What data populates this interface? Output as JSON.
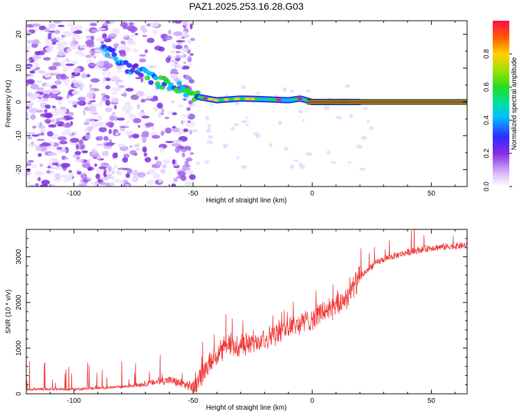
{
  "figure": {
    "title": "PAZ1.2025.253.16.28.G03"
  },
  "chart_data": [
    {
      "type": "heatmap",
      "id": "spectrogram",
      "xlabel": "Height of straight line (km)",
      "ylabel": "Frequency (Hz)",
      "xlim": [
        -120,
        65
      ],
      "ylim": [
        -25,
        24
      ],
      "xticks": [
        -100,
        -50,
        0,
        50
      ],
      "yticks": [
        -20,
        -10,
        0,
        10,
        20
      ],
      "colorbar": {
        "label": "Normalized spectral amplitude",
        "range": [
          0,
          1
        ],
        "ticks": [
          0.0,
          0.2,
          0.4,
          0.6,
          0.8
        ]
      },
      "ridge_track": [
        {
          "x": -85,
          "y": 15
        },
        {
          "x": -80,
          "y": 11
        },
        {
          "x": -72,
          "y": 9
        },
        {
          "x": -65,
          "y": 6
        },
        {
          "x": -58,
          "y": 5
        },
        {
          "x": -52,
          "y": 3
        },
        {
          "x": -48,
          "y": 1.5
        },
        {
          "x": -40,
          "y": 0.5
        },
        {
          "x": -30,
          "y": 1
        },
        {
          "x": -20,
          "y": 0.8
        },
        {
          "x": -10,
          "y": 0.5
        },
        {
          "x": -5,
          "y": 1
        },
        {
          "x": 0,
          "y": 0
        },
        {
          "x": 10,
          "y": 0
        },
        {
          "x": 20,
          "y": 0
        },
        {
          "x": 65,
          "y": 0
        }
      ],
      "noise_region": {
        "x_from": -120,
        "x_to": -50,
        "y_from": -25,
        "y_to": 24
      }
    },
    {
      "type": "line",
      "id": "snr",
      "xlabel": "Height of straight line (km)",
      "ylabel": "SNR (10 * v/v)",
      "xlim": [
        -120,
        65
      ],
      "ylim": [
        0,
        3600
      ],
      "xticks": [
        -100,
        -50,
        0,
        50
      ],
      "yticks": [
        0,
        1000,
        2000,
        3000
      ],
      "series_color": "#ef3535",
      "trend": [
        {
          "x": -120,
          "y": 100
        },
        {
          "x": -100,
          "y": 100
        },
        {
          "x": -80,
          "y": 150
        },
        {
          "x": -70,
          "y": 220
        },
        {
          "x": -60,
          "y": 300
        },
        {
          "x": -50,
          "y": 150
        },
        {
          "x": -45,
          "y": 500
        },
        {
          "x": -40,
          "y": 850
        },
        {
          "x": -35,
          "y": 1050
        },
        {
          "x": -30,
          "y": 1050
        },
        {
          "x": -20,
          "y": 1200
        },
        {
          "x": -10,
          "y": 1450
        },
        {
          "x": 0,
          "y": 1650
        },
        {
          "x": 5,
          "y": 1800
        },
        {
          "x": 10,
          "y": 1900
        },
        {
          "x": 15,
          "y": 2150
        },
        {
          "x": 20,
          "y": 2550
        },
        {
          "x": 25,
          "y": 2800
        },
        {
          "x": 30,
          "y": 2950
        },
        {
          "x": 40,
          "y": 3100
        },
        {
          "x": 50,
          "y": 3200
        },
        {
          "x": 65,
          "y": 3250
        }
      ]
    }
  ]
}
